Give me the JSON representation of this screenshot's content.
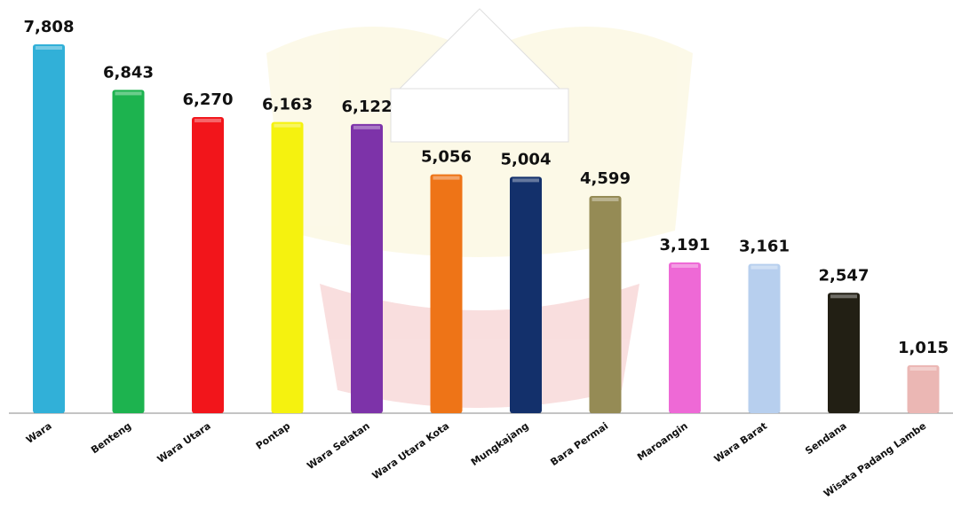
{
  "chart_data": {
    "type": "bar",
    "categories": [
      "Wara",
      "Benteng",
      "Wara Utara",
      "Pontap",
      "Wara Selatan",
      "Wara Utara Kota",
      "Mungkajang",
      "Bara Permai",
      "Maroangin",
      "Wara Barat",
      "Sendana",
      "Wisata Padang Lambe"
    ],
    "values": [
      7808,
      6843,
      6270,
      6163,
      6122,
      5056,
      5004,
      4599,
      3191,
      3161,
      2547,
      1015
    ],
    "value_labels": [
      "7,808",
      "6,843",
      "6,270",
      "6,163",
      "6,122",
      "5,056",
      "5,004",
      "4,599",
      "3,191",
      "3,161",
      "2,547",
      "1,015"
    ],
    "colors": [
      "#31b0d8",
      "#1db34f",
      "#f2151b",
      "#f5f20f",
      "#7d33a9",
      "#ee7417",
      "#13306b",
      "#958b55",
      "#ee69d6",
      "#b7cfee",
      "#221f14",
      "#ebb7b4"
    ]
  }
}
